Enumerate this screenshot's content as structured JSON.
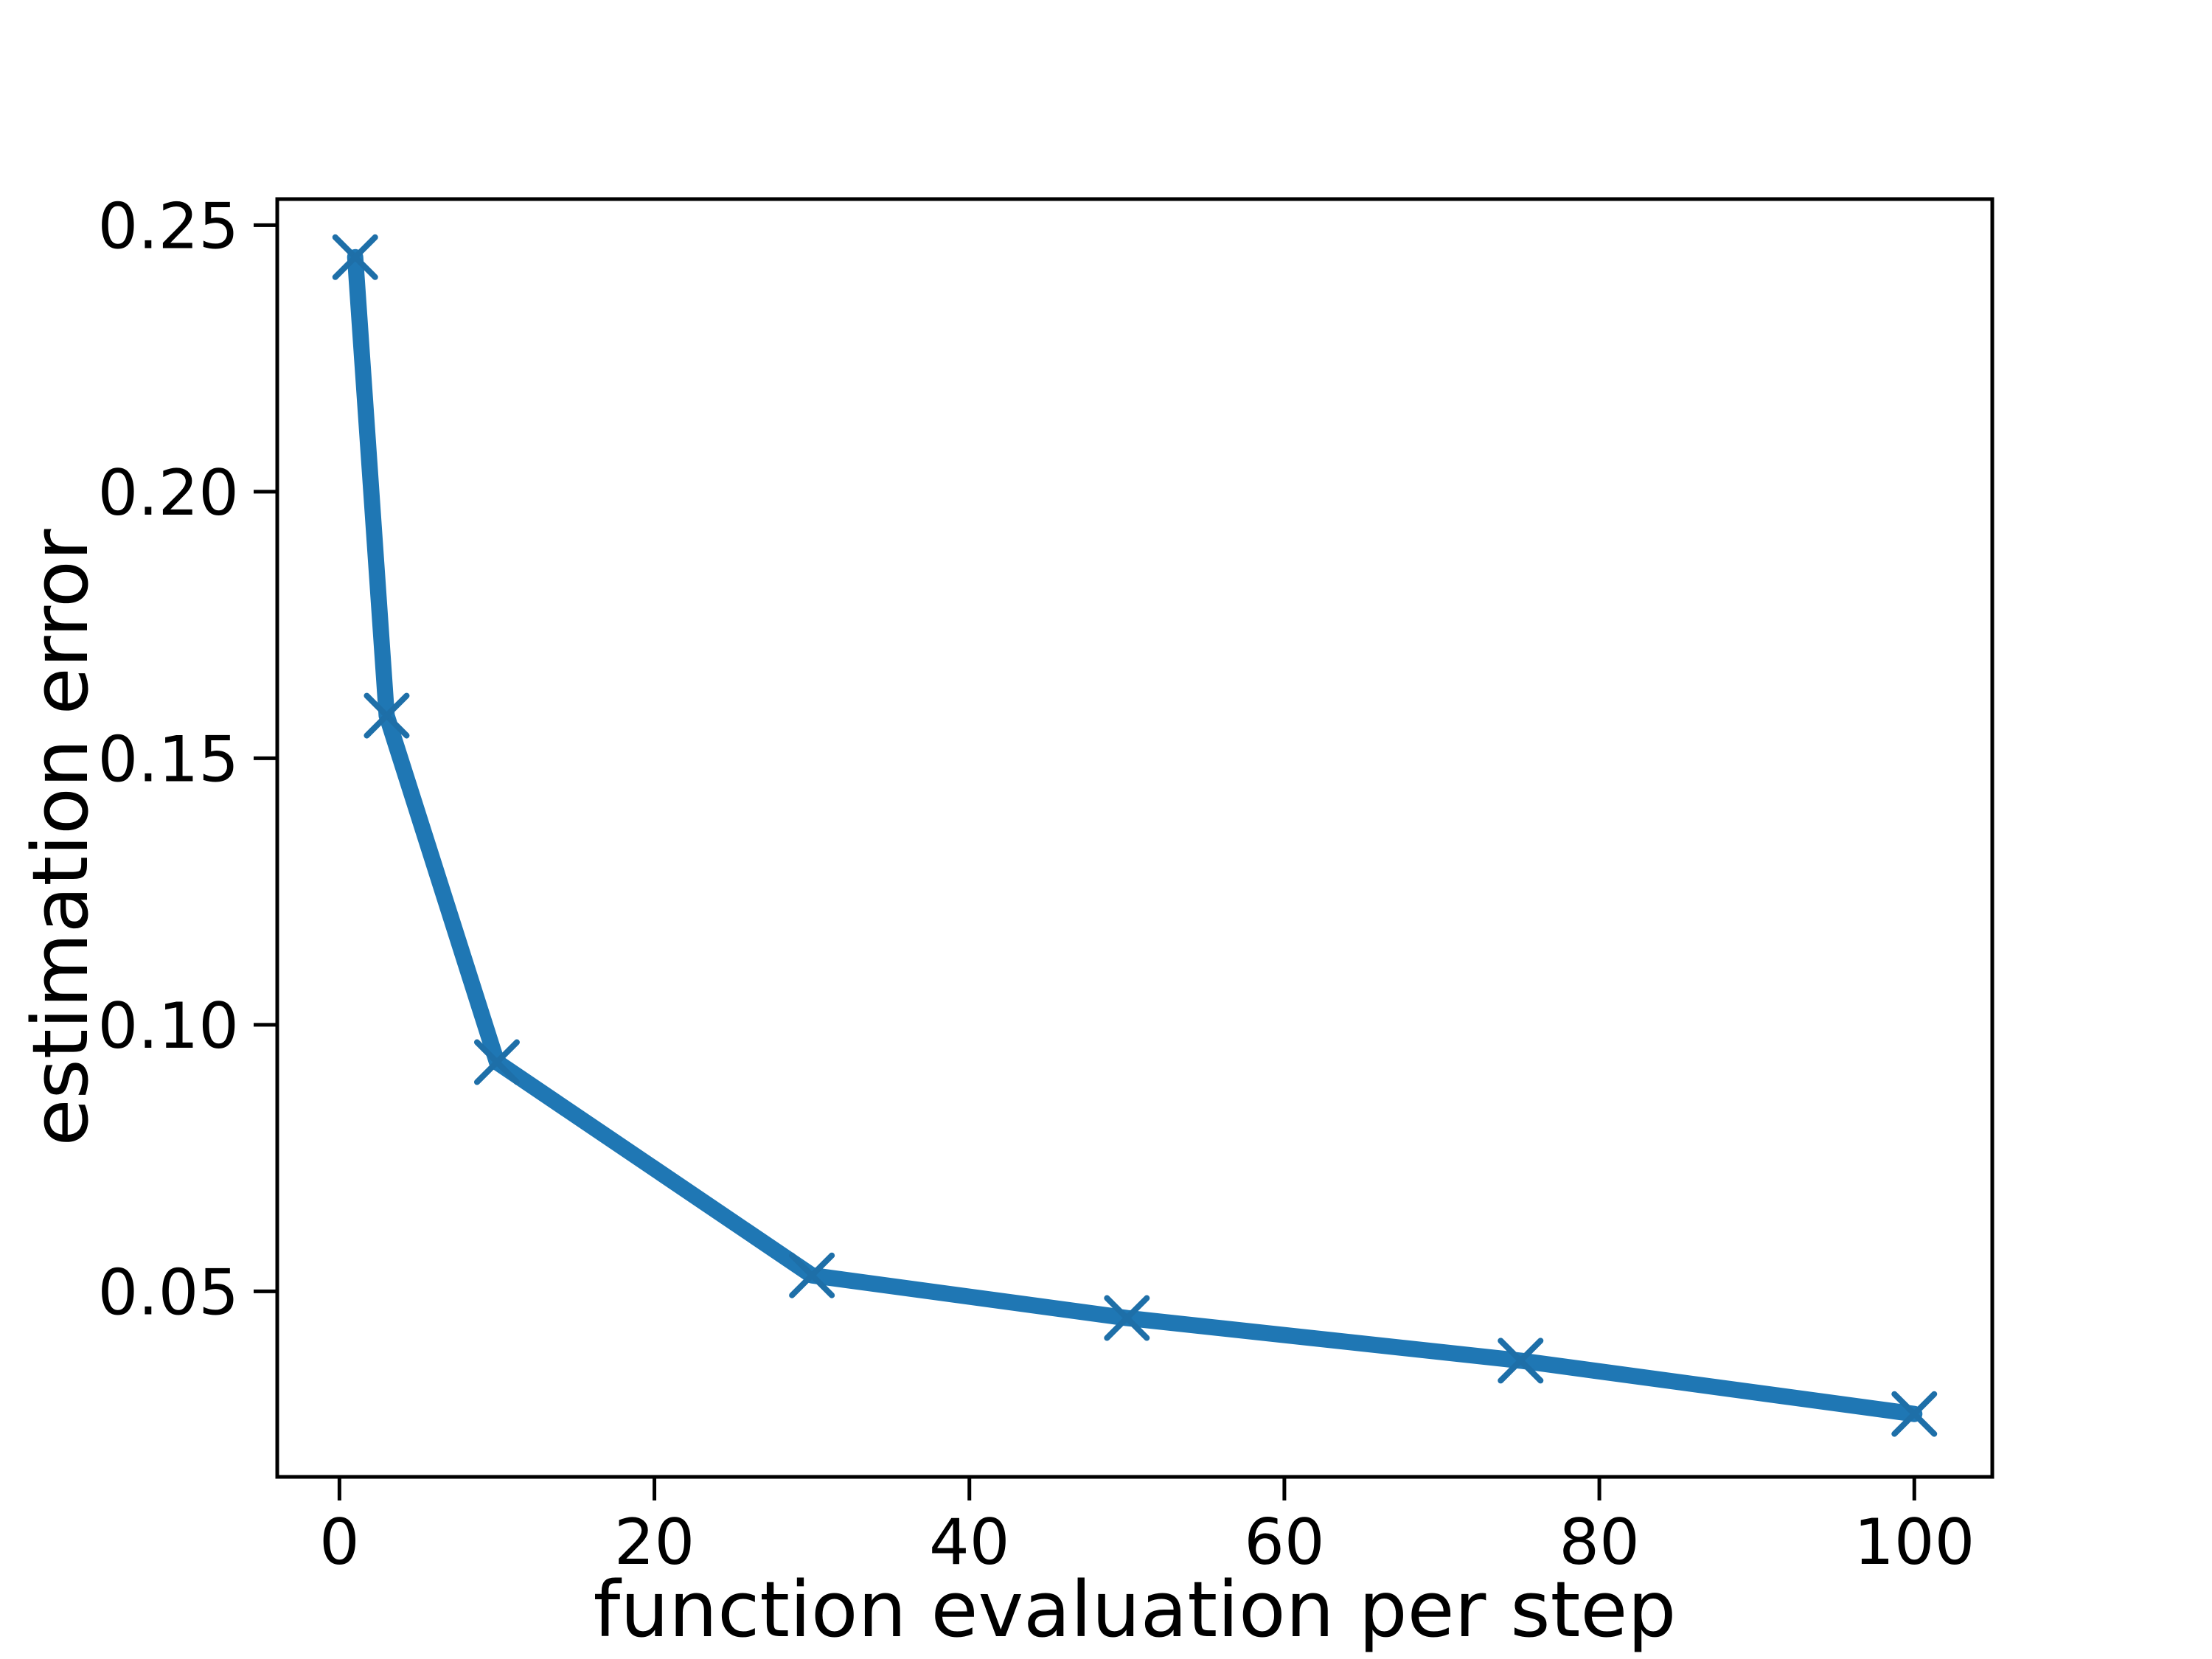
{
  "figure": {
    "background": "#ffffff",
    "plot_background": "#ffffff"
  },
  "chart_data": {
    "type": "line",
    "title": "",
    "xlabel": "function evaluation per step",
    "ylabel": "estimation error",
    "x": [
      1,
      3,
      10,
      30,
      50,
      75,
      100
    ],
    "y": [
      0.244,
      0.158,
      0.093,
      0.053,
      0.045,
      0.037,
      0.027
    ],
    "x_ticks": [
      0,
      20,
      40,
      60,
      80,
      100
    ],
    "y_ticks": [
      0.05,
      0.1,
      0.15,
      0.2,
      0.25
    ],
    "xlim": [
      -3.95,
      104.95
    ],
    "ylim": [
      0.0152,
      0.2549
    ],
    "grid": false,
    "legend": "none",
    "marker": "x",
    "line_color": "#1f77b4",
    "marker_color": "#1e6fa8",
    "axis_color": "#000000",
    "tick_label_color": "#000000"
  }
}
